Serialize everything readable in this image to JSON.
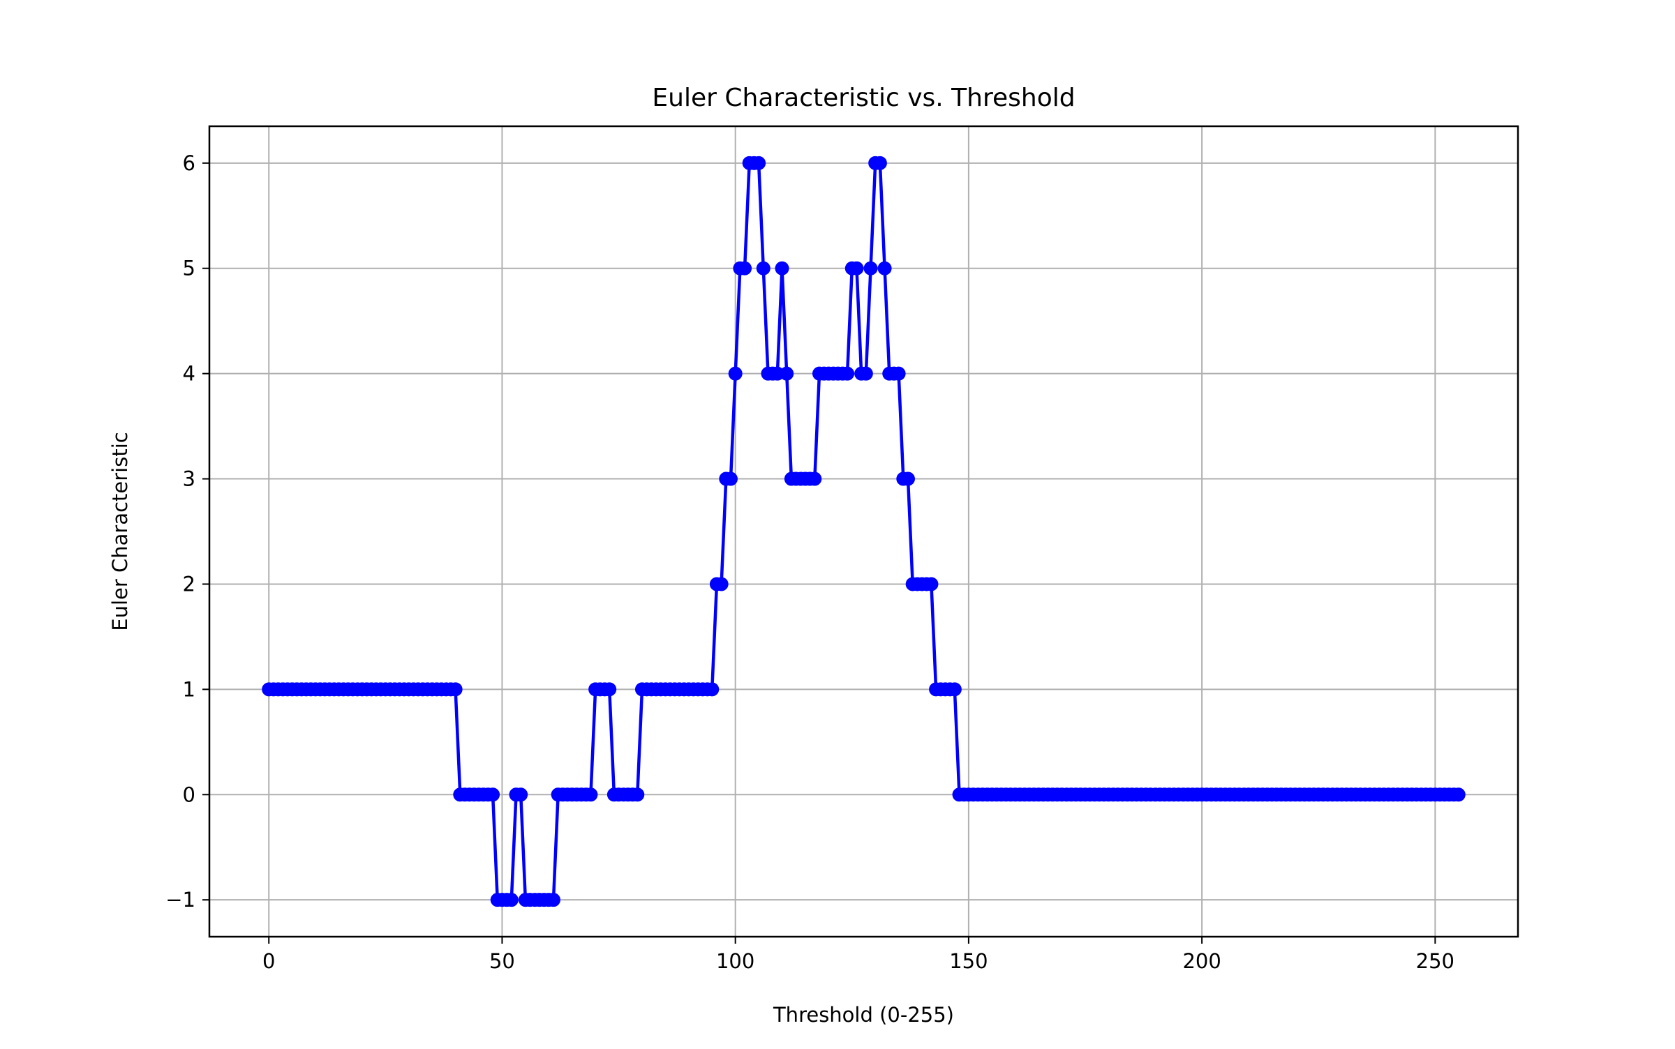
{
  "chart_data": {
    "type": "line",
    "title": "Euler Characteristic vs. Threshold",
    "xlabel": "Threshold (0-255)",
    "ylabel": "Euler Characteristic",
    "xlim": [
      -12.75,
      267.75
    ],
    "ylim": [
      -1.35,
      6.35
    ],
    "xticks": [
      0,
      50,
      100,
      150,
      200,
      250
    ],
    "xtick_labels": [
      "0",
      "50",
      "100",
      "150",
      "200",
      "250"
    ],
    "yticks": [
      -1,
      0,
      1,
      2,
      3,
      4,
      5,
      6
    ],
    "ytick_labels": [
      "−1",
      "0",
      "1",
      "2",
      "3",
      "4",
      "5",
      "6"
    ],
    "grid": true,
    "series": [
      {
        "color": "#0000ff",
        "marker": "circle",
        "x_start": 0,
        "x_step": 1,
        "y": [
          1,
          1,
          1,
          1,
          1,
          1,
          1,
          1,
          1,
          1,
          1,
          1,
          1,
          1,
          1,
          1,
          1,
          1,
          1,
          1,
          1,
          1,
          1,
          1,
          1,
          1,
          1,
          1,
          1,
          1,
          1,
          1,
          1,
          1,
          1,
          1,
          1,
          1,
          1,
          1,
          1,
          0,
          0,
          0,
          0,
          0,
          0,
          0,
          0,
          -1,
          -1,
          -1,
          -1,
          0,
          0,
          -1,
          -1,
          -1,
          -1,
          -1,
          -1,
          -1,
          0,
          0,
          0,
          0,
          0,
          0,
          0,
          0,
          1,
          1,
          1,
          1,
          0,
          0,
          0,
          0,
          0,
          0,
          1,
          1,
          1,
          1,
          1,
          1,
          1,
          1,
          1,
          1,
          1,
          1,
          1,
          1,
          1,
          1,
          2,
          2,
          3,
          3,
          4,
          5,
          5,
          6,
          6,
          6,
          5,
          4,
          4,
          4,
          5,
          4,
          3,
          3,
          3,
          3,
          3,
          3,
          4,
          4,
          4,
          4,
          4,
          4,
          4,
          5,
          5,
          4,
          4,
          5,
          6,
          6,
          5,
          4,
          4,
          4,
          3,
          3,
          2,
          2,
          2,
          2,
          2,
          1,
          1,
          1,
          1,
          1,
          0,
          0,
          0,
          0,
          0,
          0,
          0,
          0,
          0,
          0,
          0,
          0,
          0,
          0,
          0,
          0,
          0,
          0,
          0,
          0,
          0,
          0,
          0,
          0,
          0,
          0,
          0,
          0,
          0,
          0,
          0,
          0,
          0,
          0,
          0,
          0,
          0,
          0,
          0,
          0,
          0,
          0,
          0,
          0,
          0,
          0,
          0,
          0,
          0,
          0,
          0,
          0,
          0,
          0,
          0,
          0,
          0,
          0,
          0,
          0,
          0,
          0,
          0,
          0,
          0,
          0,
          0,
          0,
          0,
          0,
          0,
          0,
          0,
          0,
          0,
          0,
          0,
          0,
          0,
          0,
          0,
          0,
          0,
          0,
          0,
          0,
          0,
          0,
          0,
          0,
          0,
          0,
          0,
          0,
          0,
          0,
          0,
          0,
          0,
          0,
          0,
          0,
          0,
          0,
          0,
          0,
          0,
          0
        ]
      }
    ]
  }
}
